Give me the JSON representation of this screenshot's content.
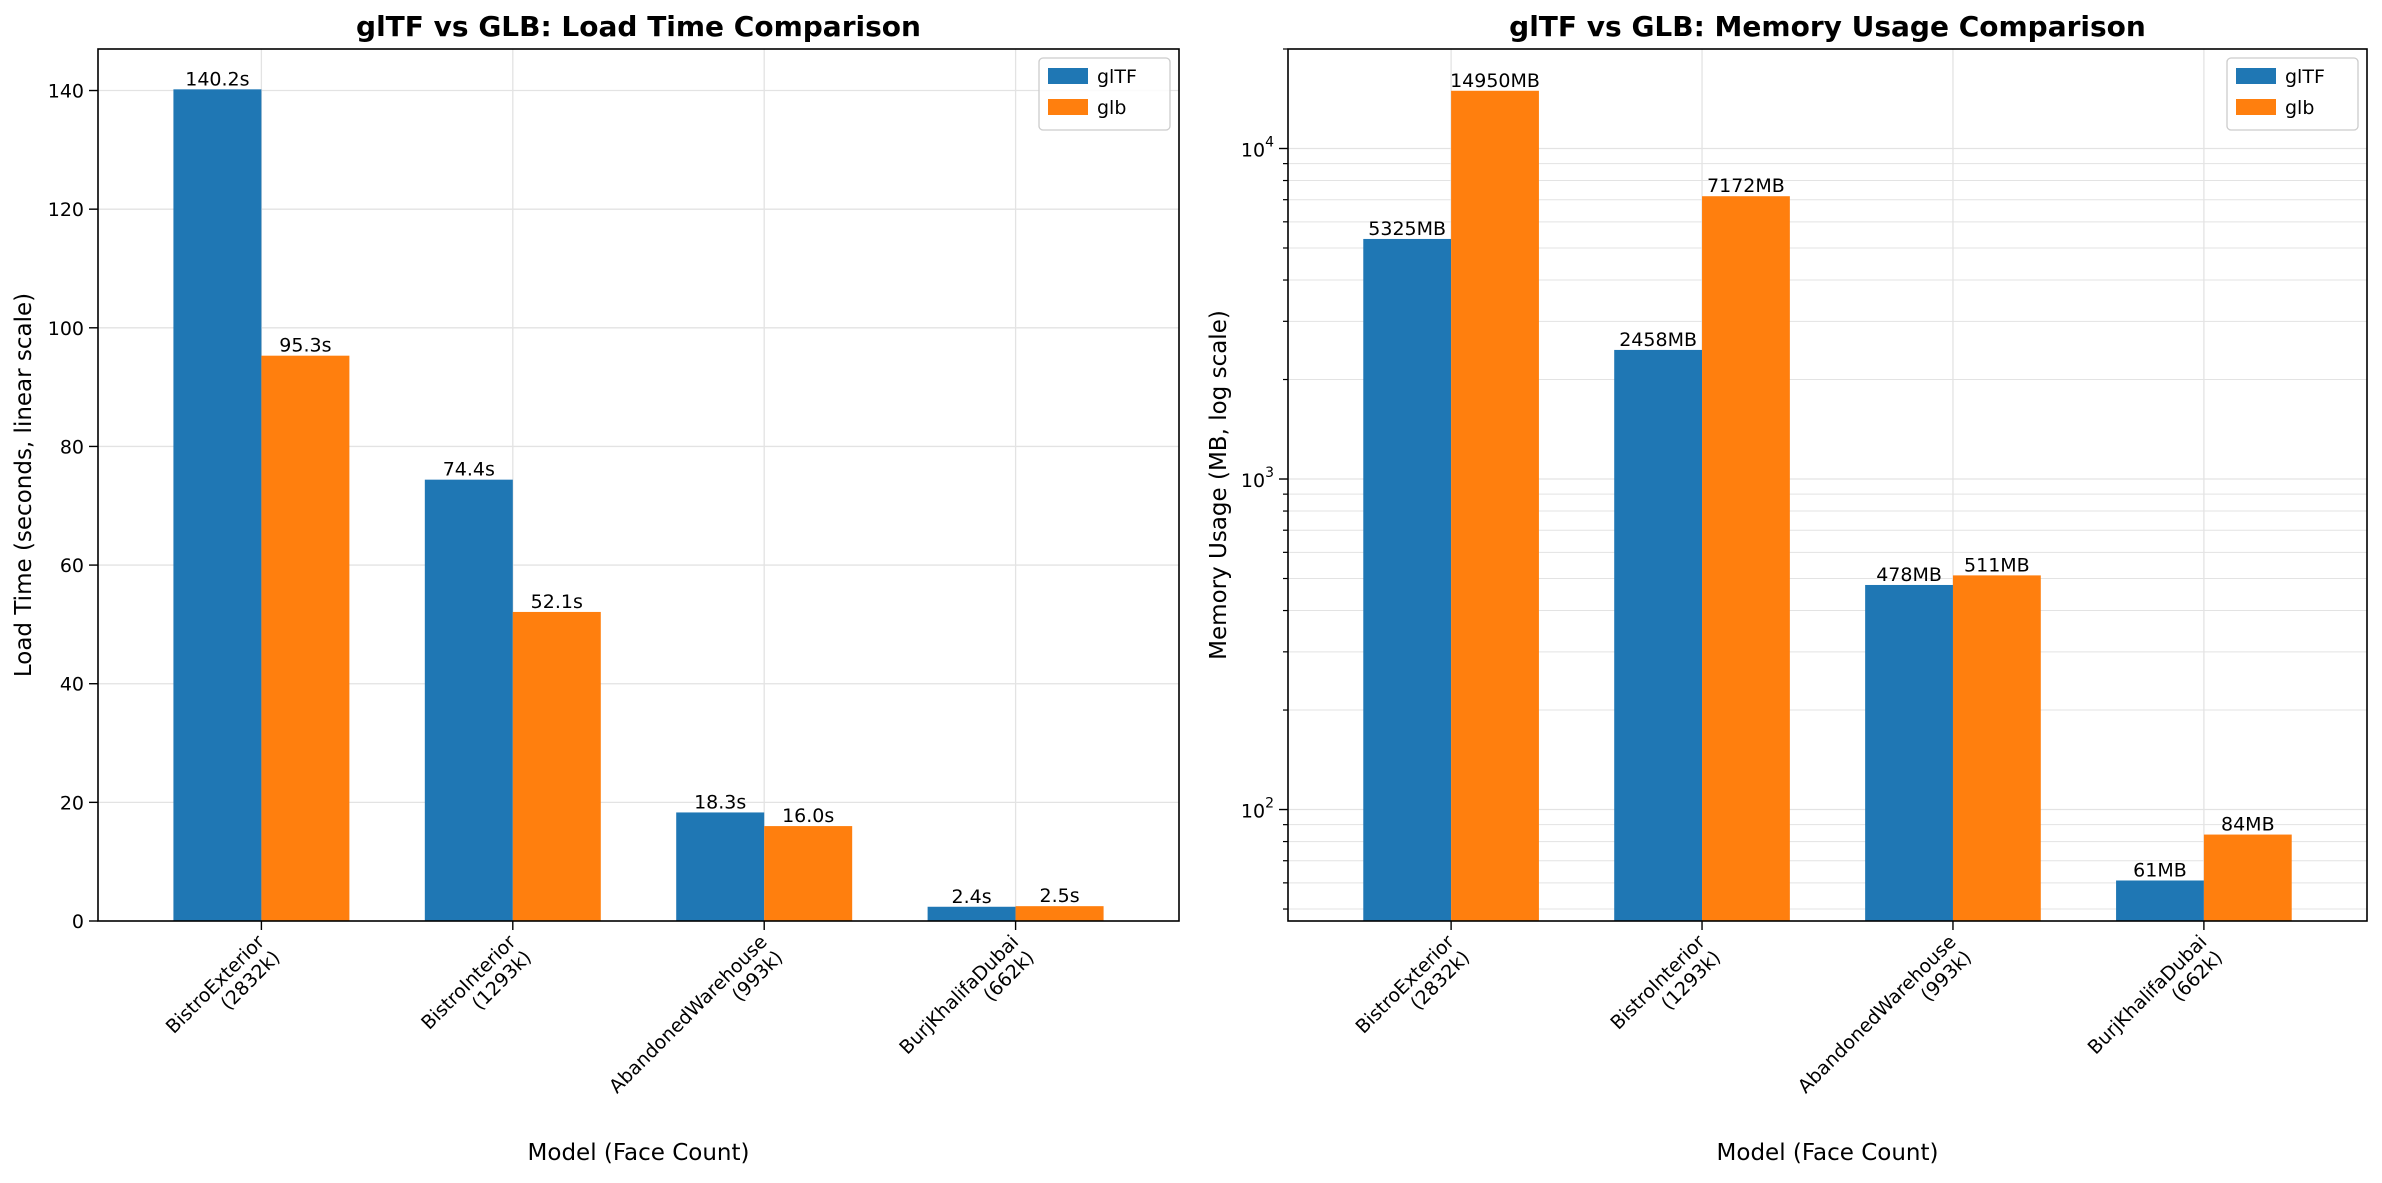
{
  "colors": {
    "gltf": "#1f77b4",
    "glb": "#ff7f0e",
    "grid": "#e3e3e3",
    "frame": "#000000"
  },
  "chart_data": [
    {
      "type": "bar",
      "title": "glTF vs GLB: Load Time Comparison",
      "xlabel": "Model (Face Count)",
      "ylabel": "Load Time (seconds, linear scale)",
      "scale": "linear",
      "ylim": [
        0,
        147
      ],
      "yticks": [
        {
          "value": 0,
          "label": "0"
        },
        {
          "value": 20,
          "label": "20"
        },
        {
          "value": 40,
          "label": "40"
        },
        {
          "value": 60,
          "label": "60"
        },
        {
          "value": 80,
          "label": "80"
        },
        {
          "value": 100,
          "label": "100"
        },
        {
          "value": 120,
          "label": "120"
        },
        {
          "value": 140,
          "label": "140"
        }
      ],
      "categories": [
        [
          "BistroExterior",
          "(2832k)"
        ],
        [
          "BistroInterior",
          "(1293k)"
        ],
        [
          "AbandonedWarehouse",
          "(993k)"
        ],
        [
          "BurjKhalifaDubai",
          "(662k)"
        ]
      ],
      "series": [
        {
          "name": "glTF",
          "color": "#1f77b4",
          "values": [
            140.2,
            74.4,
            18.3,
            2.4
          ],
          "labels": [
            "140.2s",
            "74.4s",
            "18.3s",
            "2.4s"
          ]
        },
        {
          "name": "glb",
          "color": "#ff7f0e",
          "values": [
            95.3,
            52.1,
            16.0,
            2.5
          ],
          "labels": [
            "95.3s",
            "52.1s",
            "16.0s",
            "2.5s"
          ]
        }
      ],
      "legend": "top-right",
      "grid": true
    },
    {
      "type": "bar",
      "title": "glTF vs GLB: Memory Usage Comparison",
      "xlabel": "Model (Face Count)",
      "ylabel": "Memory Usage (MB, log scale)",
      "scale": "log",
      "ylim": [
        46,
        20000
      ],
      "yticks": [
        {
          "value": 100,
          "base": "10",
          "exp": "2"
        },
        {
          "value": 1000,
          "base": "10",
          "exp": "3"
        },
        {
          "value": 10000,
          "base": "10",
          "exp": "4"
        }
      ],
      "categories": [
        [
          "BistroExterior",
          "(2832k)"
        ],
        [
          "BistroInterior",
          "(1293k)"
        ],
        [
          "AbandonedWarehouse",
          "(993k)"
        ],
        [
          "BurjKhalifaDubai",
          "(662k)"
        ]
      ],
      "series": [
        {
          "name": "glTF",
          "color": "#1f77b4",
          "values": [
            5325,
            2458,
            478,
            61
          ],
          "labels": [
            "5325MB",
            "2458MB",
            "478MB",
            "61MB"
          ]
        },
        {
          "name": "glb",
          "color": "#ff7f0e",
          "values": [
            14950,
            7172,
            511,
            84
          ],
          "labels": [
            "14950MB",
            "7172MB",
            "511MB",
            "84MB"
          ]
        }
      ],
      "legend": "top-right",
      "grid": true
    }
  ]
}
